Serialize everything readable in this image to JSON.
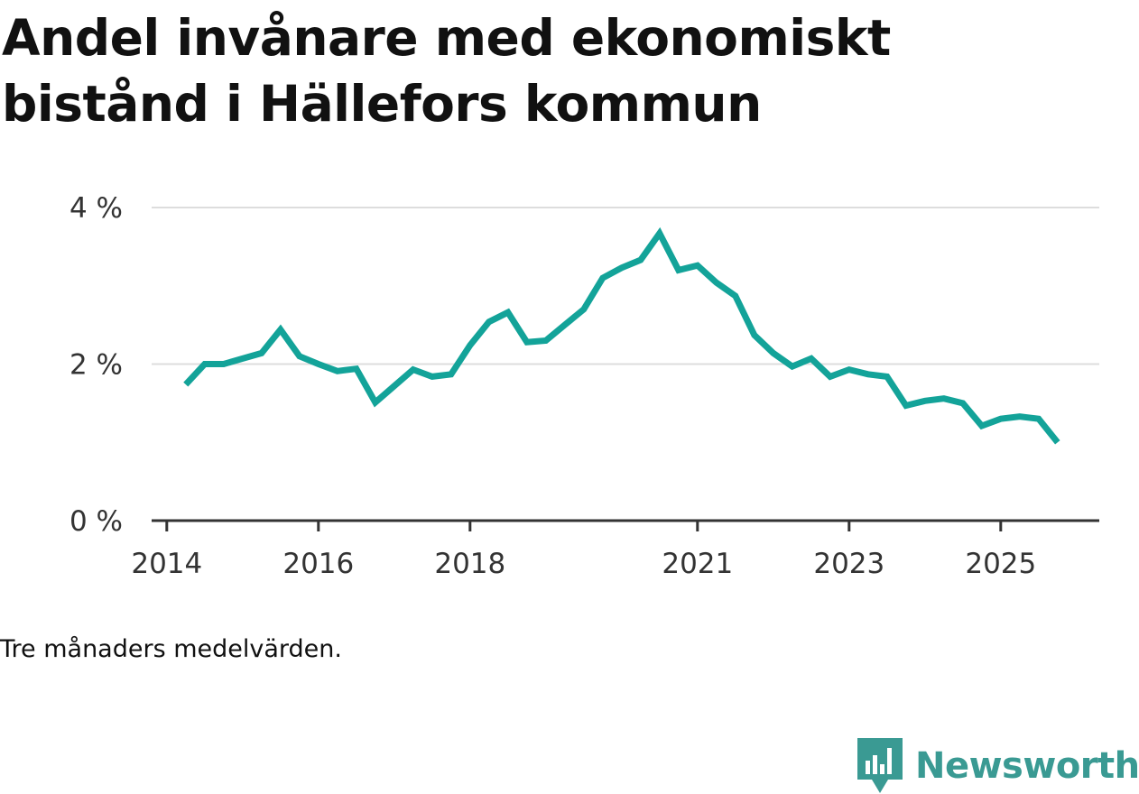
{
  "title": "Andel invånare med ekonomiskt bistånd i Hällefors kommun",
  "note": "Tre månaders medelvärden.",
  "brand": {
    "name": "Newsworthy",
    "logo_icon": "chart-bubble-icon",
    "color": "#3a9a93"
  },
  "colors": {
    "line": "#13a399",
    "grid": "#dddddd",
    "axis": "#333333"
  },
  "chart_data": {
    "type": "line",
    "title": "Andel invånare med ekonomiskt bistånd i Hällefors kommun",
    "xlabel": "",
    "ylabel": "",
    "xlim": [
      2013.8,
      2026.3
    ],
    "ylim": [
      0,
      4
    ],
    "x_ticks": [
      2014,
      2016,
      2018,
      2021,
      2023,
      2025
    ],
    "y_ticks": [
      0,
      2,
      4
    ],
    "y_tick_labels": [
      "0 %",
      "2 %",
      "4 %"
    ],
    "grid": true,
    "legend": "none",
    "series": [
      {
        "name": "Andel invånare med ekonomiskt bistånd",
        "x": [
          2014.25,
          2014.5,
          2014.75,
          2015.0,
          2015.25,
          2015.5,
          2015.75,
          2016.0,
          2016.25,
          2016.5,
          2016.75,
          2017.0,
          2017.25,
          2017.5,
          2017.75,
          2018.0,
          2018.25,
          2018.5,
          2018.75,
          2019.0,
          2019.25,
          2019.5,
          2019.75,
          2020.0,
          2020.25,
          2020.5,
          2020.75,
          2021.0,
          2021.25,
          2021.5,
          2021.75,
          2022.0,
          2022.25,
          2022.5,
          2022.75,
          2023.0,
          2023.25,
          2023.5,
          2023.75,
          2024.0,
          2024.25,
          2024.5,
          2024.75,
          2025.0,
          2025.25,
          2025.5,
          2025.75
        ],
        "values": [
          1.74,
          2.0,
          2.0,
          2.07,
          2.14,
          2.44,
          2.1,
          2.0,
          1.91,
          1.94,
          1.51,
          1.72,
          1.93,
          1.84,
          1.87,
          2.24,
          2.54,
          2.66,
          2.28,
          2.3,
          2.5,
          2.7,
          3.1,
          3.23,
          3.33,
          3.67,
          3.2,
          3.26,
          3.04,
          2.87,
          2.37,
          2.14,
          1.97,
          2.07,
          1.84,
          1.93,
          1.87,
          1.84,
          1.47,
          1.53,
          1.56,
          1.5,
          1.21,
          1.3,
          1.33,
          1.3,
          1.0
        ]
      }
    ]
  }
}
